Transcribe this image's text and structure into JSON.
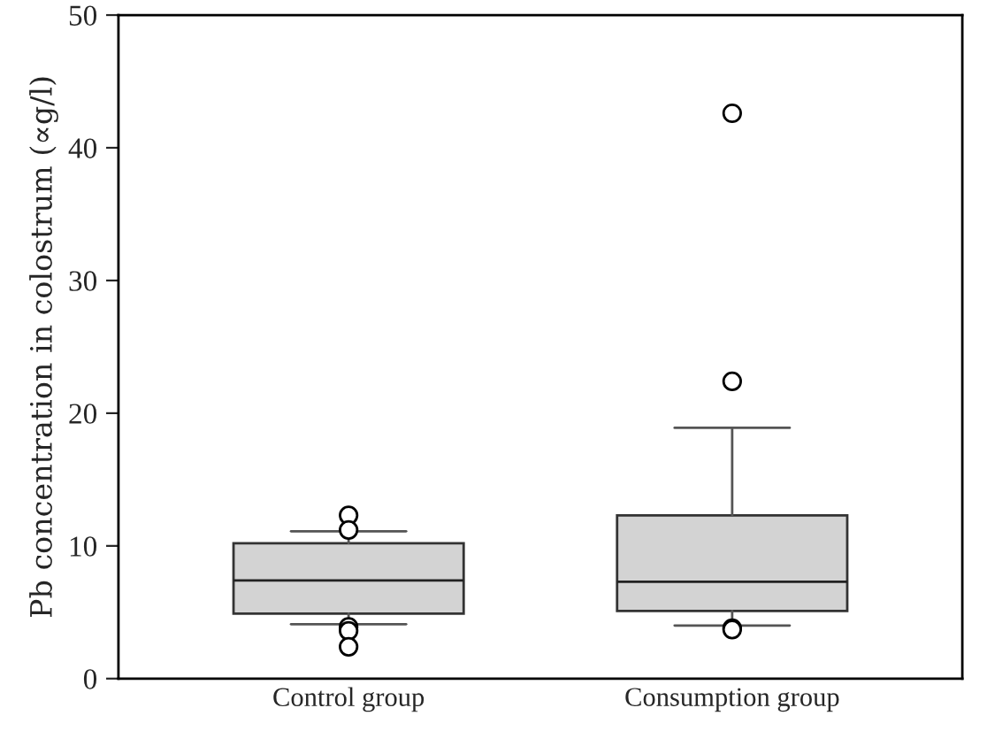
{
  "chart_data": {
    "type": "box",
    "ylabel": "Pb concentration in colostrum (∝g/l)",
    "categories": [
      "Control group",
      "Consumption group"
    ],
    "boxes": [
      {
        "low": 4.1,
        "q1": 4.9,
        "median": 7.4,
        "q3": 10.2,
        "high": 11.1,
        "outliers": [
          12.3,
          11.2,
          3.9,
          3.6,
          2.4
        ]
      },
      {
        "low": 4.0,
        "q1": 5.1,
        "median": 7.3,
        "q3": 12.3,
        "high": 18.9,
        "outliers": [
          42.6,
          22.4,
          3.8,
          3.7
        ]
      }
    ],
    "color": "#d3d3d3",
    "ylim": [
      0,
      50
    ],
    "yticks": [
      0,
      10,
      20,
      30,
      40,
      50
    ],
    "grid": false
  }
}
